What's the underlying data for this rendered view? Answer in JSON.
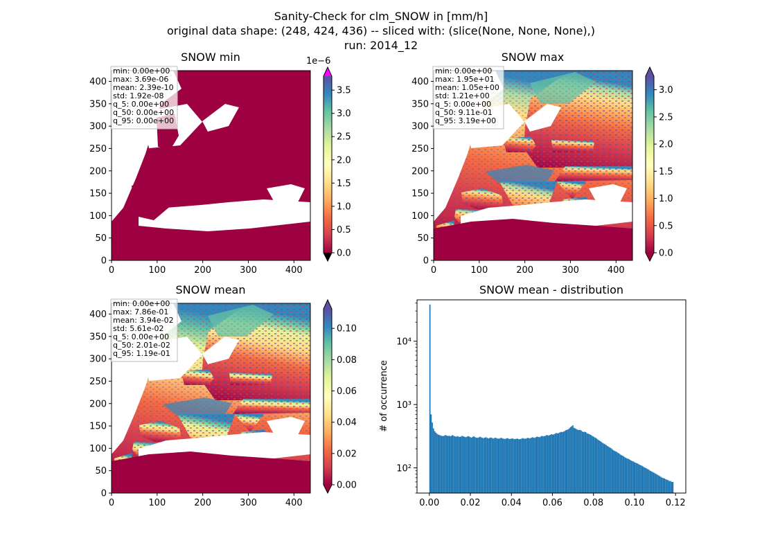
{
  "figure": {
    "title_lines": [
      "Sanity-Check for clm_SNOW in [mm/h]",
      "original data shape: (248, 424, 436) -- sliced with: (slice(None, None, None),)",
      "run: 2014_12"
    ]
  },
  "map_axes": {
    "x_ticks": [
      "0",
      "100",
      "200",
      "300",
      "400"
    ],
    "y_ticks": [
      "0",
      "50",
      "100",
      "150",
      "200",
      "250",
      "300",
      "350",
      "400"
    ],
    "xlim": [
      0,
      436
    ],
    "ylim": [
      0,
      424
    ]
  },
  "panels": {
    "min": {
      "title": "SNOW min",
      "stats": [
        "min: 0.00e+00",
        "max: 3.69e-06",
        "mean: 2.39e-10",
        "std: 1.92e-08",
        "q_5: 0.00e+00",
        "q_50: 0.00e+00",
        "q_95: 0.00e+00"
      ],
      "colorbar": {
        "ticks": [
          "0.0",
          "0.5",
          "1.0",
          "1.5",
          "2.0",
          "2.5",
          "3.0",
          "3.5"
        ],
        "offset": "1e−6",
        "range": [
          0,
          3.8
        ],
        "extend_low_color": "#000000",
        "extend_high_color": "#ff00ff"
      }
    },
    "max": {
      "title": "SNOW max",
      "stats": [
        "min: 0.00e+00",
        "max: 1.95e+01",
        "mean: 1.05e+00",
        "std: 1.21e+00",
        "q_5: 0.00e+00",
        "q_50: 9.11e-01",
        "q_95: 3.19e+00"
      ],
      "colorbar": {
        "ticks": [
          "0.0",
          "0.5",
          "1.0",
          "1.5",
          "2.0",
          "2.5",
          "3.0"
        ],
        "range": [
          0,
          3.25
        ]
      }
    },
    "mean": {
      "title": "SNOW mean",
      "stats": [
        "min: 0.00e+00",
        "max: 7.86e-01",
        "mean: 3.94e-02",
        "std: 5.61e-02",
        "q_5: 0.00e+00",
        "q_50: 2.01e-02",
        "q_95: 1.19e-01"
      ],
      "colorbar": {
        "ticks": [
          "0.00",
          "0.02",
          "0.04",
          "0.06",
          "0.08",
          "0.10"
        ],
        "range": [
          0,
          0.1125
        ]
      }
    }
  },
  "colormap": {
    "name": "Spectral",
    "stops": [
      "#9e0142",
      "#d53e4f",
      "#f46d43",
      "#fdae61",
      "#fee08b",
      "#ffffbf",
      "#e6f598",
      "#abdda4",
      "#66c2a5",
      "#3288bd",
      "#5e4fa2"
    ]
  },
  "chart_data": {
    "type": "bar",
    "title": "SNOW mean - distribution",
    "xlabel": "",
    "ylabel": "# of occurrence",
    "yscale": "log",
    "xlim": [
      -0.006,
      0.125
    ],
    "ylim": [
      40,
      45000
    ],
    "x_ticks": [
      "0.00",
      "0.02",
      "0.04",
      "0.06",
      "0.08",
      "0.10",
      "0.12"
    ],
    "y_ticks": [
      "10²",
      "10³",
      "10⁴"
    ],
    "color": "#1f77b4",
    "bin_start": 0.0,
    "bin_end": 0.119,
    "values": [
      38000,
      700,
      520,
      420,
      380,
      360,
      345,
      335,
      330,
      325,
      320,
      318,
      322,
      330,
      325,
      318,
      322,
      316,
      320,
      330,
      320,
      315,
      310,
      318,
      312,
      308,
      312,
      320,
      315,
      310,
      305,
      310,
      318,
      312,
      305,
      300,
      310,
      315,
      305,
      300,
      298,
      302,
      310,
      304,
      298,
      295,
      300,
      305,
      298,
      292,
      296,
      302,
      298,
      290,
      295,
      300,
      294,
      290,
      288,
      295,
      298,
      292,
      288,
      286,
      290,
      295,
      290,
      285,
      288,
      292,
      288,
      284,
      286,
      290,
      287,
      283,
      285,
      290,
      295,
      290,
      288,
      292,
      298,
      295,
      293,
      298,
      305,
      300,
      298,
      305,
      312,
      308,
      305,
      312,
      320,
      316,
      315,
      322,
      330,
      326,
      325,
      332,
      340,
      336,
      338,
      345,
      355,
      350,
      355,
      362,
      370,
      368,
      372,
      380,
      392,
      398,
      405,
      420,
      440,
      455,
      470,
      430,
      420,
      410,
      400,
      395,
      398,
      390,
      375,
      368,
      372,
      365,
      350,
      345,
      340,
      332,
      322,
      315,
      305,
      300,
      290,
      280,
      272,
      265,
      256,
      248,
      242,
      236,
      230,
      222,
      216,
      210,
      205,
      198,
      190,
      185,
      182,
      178,
      172,
      168,
      162,
      158,
      155,
      150,
      146,
      142,
      140,
      138,
      134,
      130,
      128,
      126,
      122,
      120,
      118,
      115,
      112,
      110,
      108,
      105,
      102,
      100,
      98,
      95,
      93,
      90,
      88,
      86,
      84,
      82,
      80,
      78,
      76,
      74,
      72,
      70,
      69,
      68,
      66,
      65,
      64,
      62,
      62,
      60,
      60
    ]
  }
}
